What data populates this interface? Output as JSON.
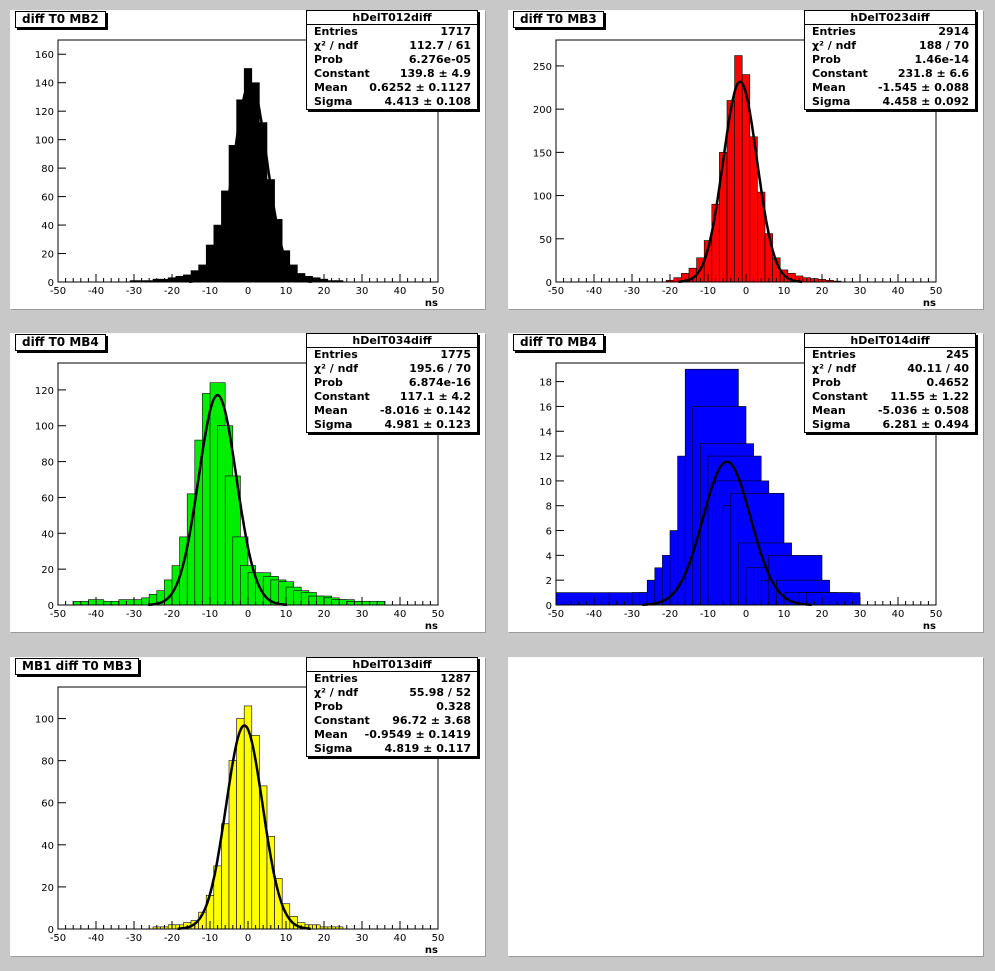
{
  "panels": [
    {
      "pad_title": "diff T0 MB2",
      "hist_name": "hDelT012diff",
      "fill_color": "#000000",
      "stats": [
        {
          "label": "Entries",
          "value": "1717"
        },
        {
          "label": "χ² / ndf",
          "value": "112.7 / 61"
        },
        {
          "label": "Prob",
          "value": "6.276e-05"
        },
        {
          "label": "Constant",
          "value": "139.8 ± 4.9"
        },
        {
          "label": "Mean",
          "value": "0.6252 ± 0.1127"
        },
        {
          "label": "Sigma",
          "value": "4.413 ± 0.108"
        }
      ]
    },
    {
      "pad_title": "diff T0 MB3",
      "hist_name": "hDelT023diff",
      "fill_color": "#ff0000",
      "stats": [
        {
          "label": "Entries",
          "value": "2914"
        },
        {
          "label": "χ² / ndf",
          "value": "188 / 70"
        },
        {
          "label": "Prob",
          "value": "1.46e-14"
        },
        {
          "label": "Constant",
          "value": "231.8 ± 6.6"
        },
        {
          "label": "Mean",
          "value": "-1.545 ± 0.088"
        },
        {
          "label": "Sigma",
          "value": "4.458 ± 0.092"
        }
      ]
    },
    {
      "pad_title": "diff T0 MB4",
      "hist_name": "hDelT034diff",
      "fill_color": "#00ee00",
      "stats": [
        {
          "label": "Entries",
          "value": "1775"
        },
        {
          "label": "χ² / ndf",
          "value": "195.6 / 70"
        },
        {
          "label": "Prob",
          "value": "6.874e-16"
        },
        {
          "label": "Constant",
          "value": "117.1 ± 4.2"
        },
        {
          "label": "Mean",
          "value": "-8.016 ± 0.142"
        },
        {
          "label": "Sigma",
          "value": "4.981 ± 0.123"
        }
      ]
    },
    {
      "pad_title": "diff T0 MB4",
      "hist_name": "hDelT014diff",
      "fill_color": "#0000ff",
      "stats": [
        {
          "label": "Entries",
          "value": "245"
        },
        {
          "label": "χ² / ndf",
          "value": "40.11 / 40"
        },
        {
          "label": "Prob",
          "value": "0.4652"
        },
        {
          "label": "Constant",
          "value": "11.55 ± 1.22"
        },
        {
          "label": "Mean",
          "value": "-5.036 ± 0.508"
        },
        {
          "label": "Sigma",
          "value": "6.281 ± 0.494"
        }
      ]
    },
    {
      "pad_title": "MB1 diff T0 MB3",
      "hist_name": "hDelT013diff",
      "fill_color": "#ffff00",
      "stats": [
        {
          "label": "Entries",
          "value": "1287"
        },
        {
          "label": "χ² / ndf",
          "value": "55.98 / 52"
        },
        {
          "label": "Prob",
          "value": "0.328"
        },
        {
          "label": "Constant",
          "value": "96.72 ± 3.68"
        },
        {
          "label": "Mean",
          "value": "-0.9549 ± 0.1419"
        },
        {
          "label": "Sigma",
          "value": "4.819 ± 0.117"
        }
      ]
    }
  ],
  "chart_data": [
    {
      "type": "bar",
      "title": "hDelT012diff",
      "xlabel": "ns",
      "ylabel": "",
      "xlim": [
        -50,
        50
      ],
      "ylim": [
        0,
        170
      ],
      "xticks": [
        "-50",
        "-40",
        "-30",
        "-20",
        "-10",
        "0",
        "10",
        "20",
        "30",
        "40",
        "50"
      ],
      "yticks": [
        "0",
        "20",
        "40",
        "60",
        "80",
        "100",
        "120",
        "140",
        "160"
      ],
      "x": [
        -30,
        -28,
        -26,
        -24,
        -22,
        -20,
        -18,
        -16,
        -14,
        -12,
        -10,
        -8,
        -6,
        -4,
        -2,
        0,
        2,
        4,
        6,
        8,
        10,
        12,
        14,
        16,
        18,
        20,
        22,
        24
      ],
      "values": [
        1,
        1,
        1,
        2,
        2,
        3,
        4,
        5,
        8,
        12,
        26,
        40,
        64,
        96,
        128,
        150,
        140,
        112,
        72,
        44,
        22,
        12,
        6,
        4,
        3,
        2,
        1,
        1
      ],
      "fit": {
        "constant": 139.8,
        "mean": 0.6252,
        "sigma": 4.413
      }
    },
    {
      "type": "bar",
      "title": "hDelT023diff",
      "xlabel": "ns",
      "ylabel": "",
      "xlim": [
        -50,
        50
      ],
      "ylim": [
        0,
        280
      ],
      "xticks": [
        "-50",
        "-40",
        "-30",
        "-20",
        "-10",
        "0",
        "10",
        "20",
        "30",
        "40",
        "50"
      ],
      "yticks": [
        "0",
        "50",
        "100",
        "150",
        "200",
        "250"
      ],
      "x": [
        -20,
        -18,
        -16,
        -14,
        -12,
        -10,
        -8,
        -6,
        -4,
        -2,
        0,
        2,
        4,
        6,
        8,
        10,
        12,
        14,
        16,
        18,
        20,
        22,
        24
      ],
      "values": [
        2,
        5,
        10,
        16,
        28,
        48,
        90,
        150,
        210,
        262,
        240,
        168,
        104,
        56,
        28,
        14,
        10,
        7,
        5,
        4,
        3,
        2,
        1
      ],
      "fit": {
        "constant": 231.8,
        "mean": -1.545,
        "sigma": 4.458
      }
    },
    {
      "type": "bar",
      "title": "hDelT034diff",
      "xlabel": "ns",
      "ylabel": "",
      "xlim": [
        -50,
        50
      ],
      "ylim": [
        0,
        135
      ],
      "xticks": [
        "-50",
        "-40",
        "-30",
        "-20",
        "-10",
        "0",
        "10",
        "20",
        "30",
        "40",
        "50"
      ],
      "yticks": [
        "0",
        "20",
        "40",
        "60",
        "80",
        "100",
        "120"
      ],
      "x": [
        -44,
        -40,
        -36,
        -32,
        -28,
        -26,
        -24,
        -22,
        -20,
        -18,
        -16,
        -14,
        -12,
        -10,
        -8,
        -6,
        -4,
        -2,
        0,
        2,
        4,
        6,
        8,
        10,
        12,
        14,
        16,
        18,
        20,
        22,
        24,
        26,
        28,
        30,
        34
      ],
      "values": [
        2,
        3,
        2,
        3,
        3,
        4,
        6,
        8,
        14,
        22,
        38,
        62,
        92,
        118,
        124,
        100,
        72,
        38,
        22,
        18,
        18,
        16,
        14,
        13,
        10,
        8,
        7,
        5,
        5,
        4,
        3,
        3,
        2,
        2,
        2
      ],
      "fit": {
        "constant": 117.1,
        "mean": -8.016,
        "sigma": 4.981
      }
    },
    {
      "type": "bar",
      "title": "hDelT014diff",
      "xlabel": "ns",
      "ylabel": "",
      "xlim": [
        -50,
        50
      ],
      "ylim": [
        0,
        19.5
      ],
      "xticks": [
        "-50",
        "-40",
        "-30",
        "-20",
        "-10",
        "0",
        "10",
        "20",
        "30",
        "40",
        "50"
      ],
      "yticks": [
        "0",
        "2",
        "4",
        "6",
        "8",
        "10",
        "12",
        "14",
        "16",
        "18"
      ],
      "x": [
        -43,
        -29,
        -23,
        -21,
        -19,
        -17,
        -15,
        -13,
        -11,
        -9,
        -7,
        -5,
        -3,
        -1,
        1,
        3,
        5,
        7,
        9,
        11,
        13,
        15,
        17,
        21,
        23
      ],
      "values": [
        1,
        1,
        1,
        1,
        2,
        3,
        4,
        6,
        12,
        19,
        16,
        13,
        12,
        10,
        8,
        9,
        5,
        3,
        3,
        2,
        4,
        2,
        1,
        1,
        1
      ],
      "fit": {
        "constant": 11.55,
        "mean": -5.036,
        "sigma": 6.281
      }
    },
    {
      "type": "bar",
      "title": "hDelT013diff",
      "xlabel": "ns",
      "ylabel": "",
      "xlim": [
        -50,
        50
      ],
      "ylim": [
        0,
        115
      ],
      "xticks": [
        "-50",
        "-40",
        "-30",
        "-20",
        "-10",
        "0",
        "10",
        "20",
        "30",
        "40",
        "50"
      ],
      "yticks": [
        "0",
        "20",
        "40",
        "60",
        "80",
        "100"
      ],
      "x": [
        -24,
        -22,
        -20,
        -18,
        -16,
        -14,
        -12,
        -10,
        -8,
        -6,
        -4,
        -2,
        0,
        2,
        4,
        6,
        8,
        10,
        12,
        14,
        16,
        18,
        20,
        22,
        24
      ],
      "values": [
        1,
        1,
        2,
        2,
        3,
        4,
        8,
        16,
        30,
        50,
        80,
        100,
        106,
        92,
        68,
        44,
        24,
        12,
        6,
        3,
        2,
        2,
        1,
        1,
        1
      ],
      "fit": {
        "constant": 96.72,
        "mean": -0.9549,
        "sigma": 4.819
      }
    }
  ]
}
